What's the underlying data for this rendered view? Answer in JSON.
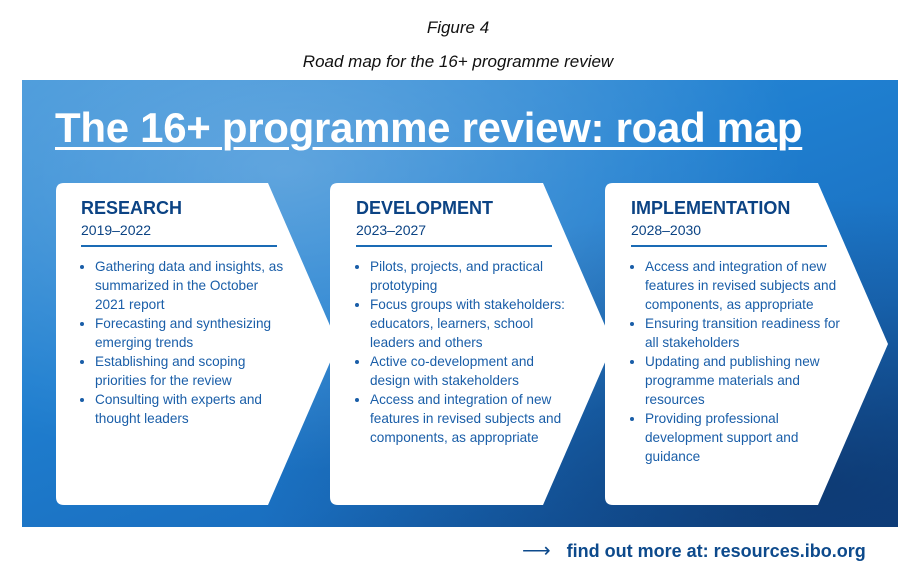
{
  "figure_label": "Figure 4",
  "caption": "Road map for the 16+ programme review",
  "banner_title": "The 16+ programme review: road map",
  "colors": {
    "heading": "#0b4384",
    "banner": "#1f7fd0",
    "card": "#ffffff"
  },
  "stages": [
    {
      "title": "RESEARCH",
      "years": "2019–2022",
      "items": [
        "Gathering data and insights, as summarized in the October 2021 report",
        "Forecasting and synthesizing emerging trends",
        "Establishing and scoping priorities for the review",
        "Consulting with experts and thought leaders"
      ]
    },
    {
      "title": "DEVELOPMENT",
      "years": "2023–2027",
      "items": [
        "Pilots, projects, and practical prototyping",
        "Focus groups with stakeholders: educators, learners, school leaders and others",
        "Active co-development and design with stakeholders",
        "Access and integration of new features in revised subjects and components, as appropriate"
      ]
    },
    {
      "title": "IMPLEMENTATION",
      "years": "2028–2030",
      "items": [
        "Access and integration of new features in revised subjects and components, as appropriate",
        "Ensuring transition readiness for all stakeholders",
        "Updating and publishing new programme materials and resources",
        "Providing professional development support and guidance"
      ]
    }
  ],
  "footer": {
    "arrow_icon": "long-right-arrow",
    "text": "find out more at: resources.ibo.org"
  }
}
